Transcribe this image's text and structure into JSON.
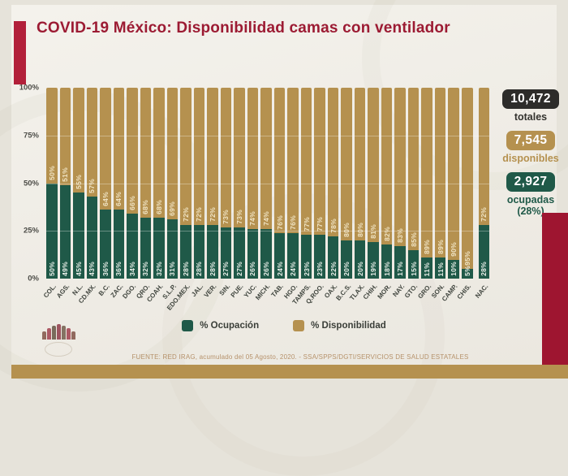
{
  "header": {
    "title": "COVID-19 México: Disponibilidad camas con ventilador"
  },
  "y_axis": {
    "ticks": [
      "100%",
      "75%",
      "50%",
      "25%",
      "0%"
    ]
  },
  "legend": [
    {
      "label": "% Ocupación",
      "color": "#1f5948"
    },
    {
      "label": "% Disponibilidad",
      "color": "#b5914f"
    }
  ],
  "stats": [
    {
      "value": "10,472",
      "label": "totales",
      "color": "#2d2c2a"
    },
    {
      "value": "7,545",
      "label": "disponibles",
      "color": "#b5914f"
    },
    {
      "value": "2,927",
      "label": "ocupadas",
      "sub_label": "(28%)",
      "color": "#1f5948"
    }
  ],
  "footer": {
    "source": "FUENTE: RED IRAG, acumulado del 05 Agosto, 2020. -  SSA/SPPS/DGTI/SERVICIOS DE SALUD ESTATALES"
  },
  "chart_data": {
    "type": "bar",
    "stacked": true,
    "title": "COVID-19 México: Disponibilidad camas con ventilador",
    "xlabel": "",
    "ylabel": "",
    "ylim": [
      0,
      100
    ],
    "y_ticks": [
      0,
      25,
      50,
      75,
      100
    ],
    "grid": true,
    "legend_position": "bottom",
    "value_labels": "percent shown vertically on each segment",
    "categories": [
      "COL.",
      "AGS.",
      "N.L.",
      "CD.MX.",
      "B.C.",
      "ZAC.",
      "DGO.",
      "QRO.",
      "COAH.",
      "S.L.P.",
      "EDO.MEX.",
      "JAL.",
      "VER.",
      "SIN.",
      "PUE.",
      "YUC.",
      "MICH.",
      "TAB.",
      "HGO.",
      "TAMPS.",
      "Q.ROO.",
      "OAX.",
      "B.C.S.",
      "TLAX.",
      "CHIH.",
      "MOR.",
      "NAY.",
      "GTO.",
      "GRO.",
      "SON.",
      "CAMP.",
      "CHIS.",
      "NAC."
    ],
    "series": [
      {
        "name": "% Ocupación",
        "color": "#1f5948",
        "values": [
          50,
          49,
          45,
          43,
          36,
          36,
          34,
          32,
          32,
          31,
          28,
          28,
          28,
          27,
          27,
          26,
          26,
          24,
          24,
          23,
          23,
          22,
          20,
          20,
          19,
          18,
          17,
          15,
          11,
          11,
          10,
          5,
          28
        ]
      },
      {
        "name": "% Disponibilidad",
        "color": "#b5914f",
        "values": [
          50,
          51,
          55,
          57,
          64,
          64,
          66,
          68,
          68,
          69,
          72,
          72,
          72,
          73,
          73,
          74,
          74,
          76,
          76,
          77,
          77,
          78,
          80,
          80,
          81,
          82,
          83,
          85,
          89,
          89,
          90,
          95,
          72
        ]
      }
    ]
  },
  "colors": {
    "title": "#9c1b33",
    "occupied": "#1f5948",
    "available": "#b5914f",
    "accent_red_left": "#b2203a",
    "accent_red_right": "#9e1530",
    "background": "#efece5"
  }
}
